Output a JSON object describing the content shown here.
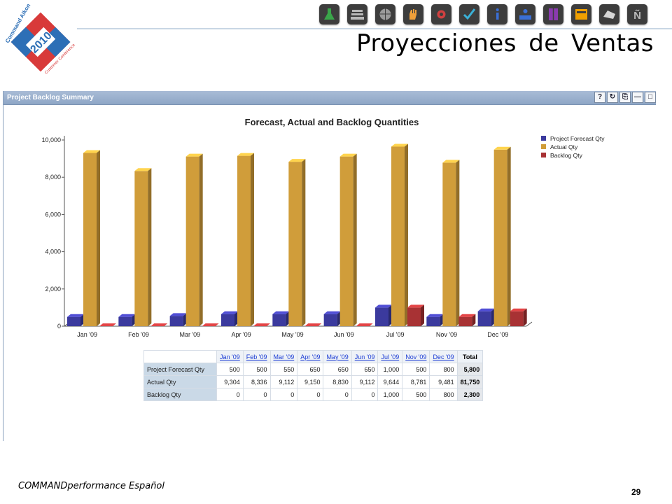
{
  "logo": {
    "line1": "Command Alkon",
    "year": "2010",
    "line2": "Customer Conference"
  },
  "toolbar_icons": [
    {
      "name": "flask-icon",
      "color": "#3aa64a"
    },
    {
      "name": "stack-icon",
      "color": "#b9b9b9"
    },
    {
      "name": "globe-icon",
      "color": "#9a9a9a"
    },
    {
      "name": "hand-icon",
      "color": "#f0a03a"
    },
    {
      "name": "gears-icon",
      "color": "#d04040"
    },
    {
      "name": "checkmark-icon",
      "color": "#3ab0d6"
    },
    {
      "name": "info-icon",
      "color": "#3a6fd6"
    },
    {
      "name": "podium-icon",
      "color": "#3a6fd6"
    },
    {
      "name": "cabinet-icon",
      "color": "#8a3ab0"
    },
    {
      "name": "window-icon",
      "color": "#f0a000"
    },
    {
      "name": "truck-icon",
      "color": "#d6d6d6"
    },
    {
      "name": "enye-icon",
      "color": "#b9b9b9"
    }
  ],
  "slide_title": "Proyecciones de Ventas",
  "panel": {
    "title": "Project Backlog Summary",
    "tools": [
      "?",
      "↻",
      "⎘",
      "—",
      "□"
    ]
  },
  "chart_data": {
    "type": "bar",
    "title": "Forecast, Actual and Backlog Quantities",
    "categories": [
      "Jan '09",
      "Feb '09",
      "Mar '09",
      "Apr '09",
      "May '09",
      "Jun '09",
      "Jul '09",
      "Nov '09",
      "Dec '09"
    ],
    "series": [
      {
        "name": "Project Forecast Qty",
        "color": "#3b3a9e",
        "values": [
          500,
          500,
          550,
          650,
          650,
          650,
          1000,
          500,
          800
        ]
      },
      {
        "name": "Actual Qty",
        "color": "#d09d3a",
        "values": [
          9304,
          8336,
          9112,
          9150,
          8830,
          9112,
          9644,
          8781,
          9481
        ]
      },
      {
        "name": "Backlog Qty",
        "color": "#a83234",
        "values": [
          0,
          0,
          0,
          0,
          0,
          0,
          1000,
          500,
          800
        ]
      }
    ],
    "ylim": [
      0,
      10000
    ],
    "yticks": [
      "0",
      "2,000",
      "4,000",
      "6,000",
      "8,000",
      "10,000"
    ],
    "legend": "top-right"
  },
  "table": {
    "headers": [
      "Jan '09",
      "Feb '09",
      "Mar '09",
      "Apr '09",
      "May '09",
      "Jun '09",
      "Jul '09",
      "Nov '09",
      "Dec '09",
      "Total"
    ],
    "rows": [
      {
        "label": "Project Forecast Qty",
        "values": [
          "500",
          "500",
          "550",
          "650",
          "650",
          "650",
          "1,000",
          "500",
          "800"
        ],
        "total": "5,800"
      },
      {
        "label": "Actual Qty",
        "values": [
          "9,304",
          "8,336",
          "9,112",
          "9,150",
          "8,830",
          "9,112",
          "9,644",
          "8,781",
          "9,481"
        ],
        "total": "81,750"
      },
      {
        "label": "Backlog Qty",
        "values": [
          "0",
          "0",
          "0",
          "0",
          "0",
          "0",
          "1,000",
          "500",
          "800"
        ],
        "total": "2,300"
      }
    ]
  },
  "footer": "COMMANDperformance Español",
  "page_number": "29"
}
